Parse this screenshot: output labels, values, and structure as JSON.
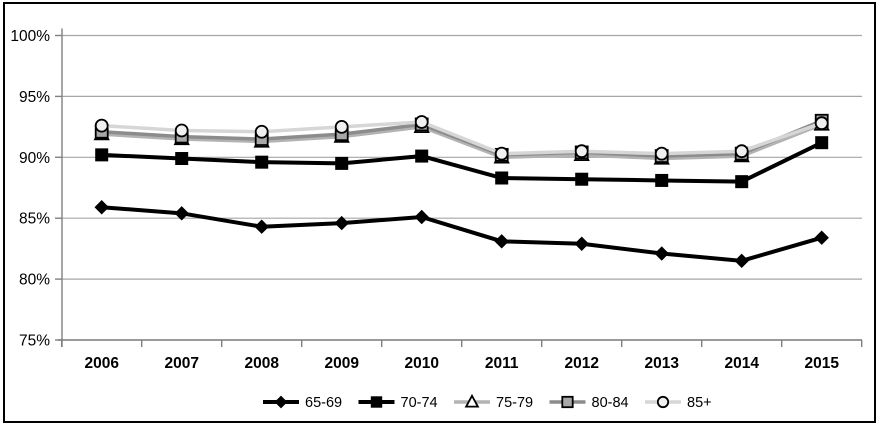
{
  "chart_data": {
    "type": "line",
    "title": "",
    "x_categories": [
      "2006",
      "2007",
      "2008",
      "2009",
      "2010",
      "2011",
      "2012",
      "2013",
      "2014",
      "2015"
    ],
    "y_axis": {
      "min": 75,
      "max": 100,
      "step": 5,
      "tick_labels": [
        "75%",
        "80%",
        "85%",
        "90%",
        "95%",
        "100%"
      ]
    },
    "grid": true,
    "legend_position": "bottom",
    "series": [
      {
        "name": "65-69",
        "marker": "diamond",
        "line_color": "#000000",
        "line_width": 4,
        "marker_fill": "#000000",
        "marker_stroke": "#000000",
        "values": [
          85.9,
          85.4,
          84.3,
          84.6,
          85.1,
          83.1,
          82.9,
          82.1,
          81.5,
          83.4
        ]
      },
      {
        "name": "70-74",
        "marker": "square",
        "line_color": "#000000",
        "line_width": 4,
        "marker_fill": "#000000",
        "marker_stroke": "#000000",
        "values": [
          90.2,
          89.9,
          89.6,
          89.5,
          90.1,
          88.3,
          88.2,
          88.1,
          88.0,
          91.2
        ]
      },
      {
        "name": "75-79",
        "marker": "triangle",
        "line_color": "#b3b3b3",
        "line_width": 3.5,
        "marker_fill": "#ffffff",
        "marker_stroke": "#000000",
        "values": [
          91.9,
          91.5,
          91.3,
          91.7,
          92.5,
          90.0,
          90.2,
          89.9,
          90.1,
          92.7
        ]
      },
      {
        "name": "80-84",
        "marker": "square",
        "line_color": "#8c8c8c",
        "line_width": 3.5,
        "marker_fill": "#a8a8a8",
        "marker_stroke": "#000000",
        "values": [
          92.1,
          91.7,
          91.5,
          91.9,
          92.7,
          90.2,
          90.4,
          90.1,
          90.3,
          93.0
        ]
      },
      {
        "name": "85+",
        "marker": "circle",
        "line_color": "#d6d6d6",
        "line_width": 3.5,
        "marker_fill": "#f0f0f0",
        "marker_stroke": "#000000",
        "values": [
          92.6,
          92.2,
          92.1,
          92.5,
          92.9,
          90.3,
          90.5,
          90.3,
          90.5,
          92.8
        ]
      }
    ],
    "colors": {
      "gridline": "#a6a6a6",
      "axis": "#808080",
      "text": "#000000",
      "background": "#ffffff",
      "border": "#000000"
    }
  }
}
